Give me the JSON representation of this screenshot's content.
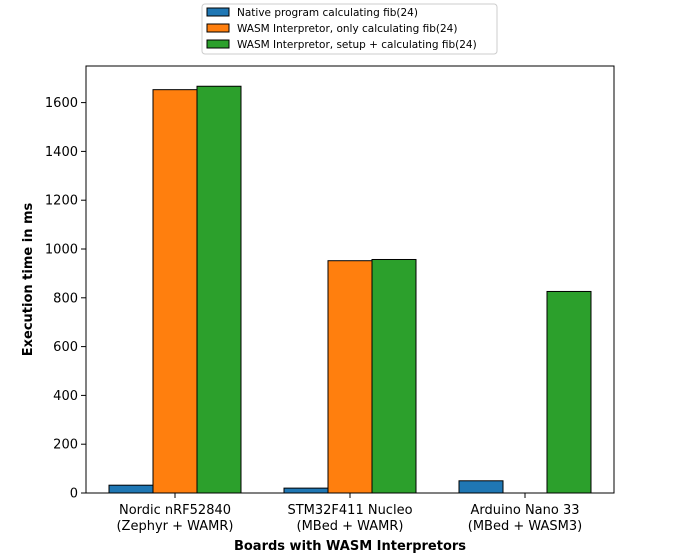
{
  "chart_data": {
    "type": "bar",
    "title": "",
    "xlabel": "Boards with WASM Interpretors",
    "ylabel": "Execution time in ms",
    "categories": [
      [
        "Nordic nRF52840",
        "(Zephyr + WAMR)"
      ],
      [
        "STM32F411 Nucleo",
        "(MBed + WAMR)"
      ],
      [
        "Arduino Nano 33",
        "(MBed + WASM3)"
      ]
    ],
    "series": [
      {
        "name": "Native program calculating fib(24)",
        "color": "#1f77b4",
        "values": [
          32,
          20,
          50
        ]
      },
      {
        "name": "WASM Interpretor, only calculating fib(24)",
        "color": "#ff7f0e",
        "values": [
          1653,
          952,
          0
        ]
      },
      {
        "name": "WASM Interpretor, setup + calculating fib(24)",
        "color": "#2ca02c",
        "values": [
          1667,
          957,
          826
        ]
      }
    ],
    "ylim": [
      0,
      1750
    ],
    "yticks": [
      0,
      200,
      400,
      600,
      800,
      1000,
      1200,
      1400,
      1600
    ],
    "grid": false,
    "legend_position": "top-center (outside plot)"
  }
}
